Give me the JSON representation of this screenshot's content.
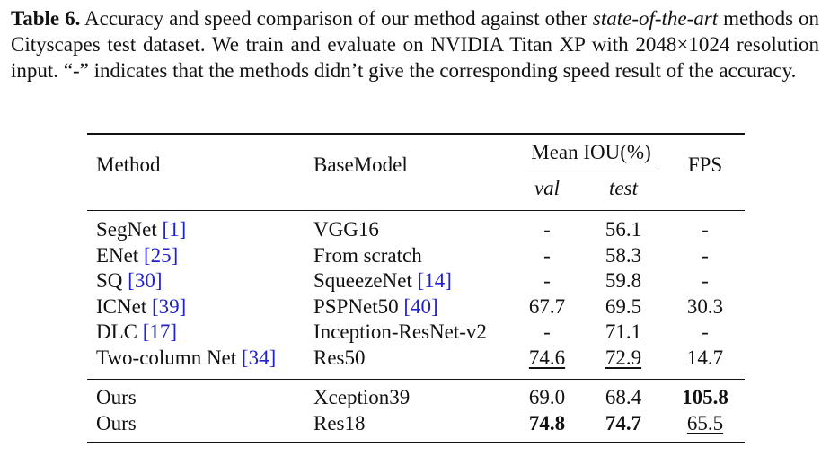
{
  "caption": {
    "label": "Table 6.",
    "text_pre": " Accuracy and speed comparison of our method against other ",
    "text_italic": "state-of-the-art",
    "text_post": " methods on Cityscapes test dataset. We train and evaluate on NVIDIA Titan XP with 2048×1024 resolution input. “-” indicates that the methods didn’t give the corresponding speed result of the accuracy."
  },
  "table": {
    "headers": {
      "method": "Method",
      "basemodel": "BaseModel",
      "miou": "Mean IOU(%)",
      "val": "val",
      "test": "test",
      "fps": "FPS"
    },
    "rows": [
      {
        "method": "SegNet",
        "method_ref": "[1]",
        "base": "VGG16",
        "base_ref": "",
        "val": "-",
        "test": "56.1",
        "fps": "-"
      },
      {
        "method": "ENet",
        "method_ref": "[25]",
        "base": "From scratch",
        "base_ref": "",
        "val": "-",
        "test": "58.3",
        "fps": "-"
      },
      {
        "method": "SQ",
        "method_ref": "[30]",
        "base": "SqueezeNet",
        "base_ref": "[14]",
        "val": "-",
        "test": "59.8",
        "fps": "-"
      },
      {
        "method": "ICNet",
        "method_ref": "[39]",
        "base": "PSPNet50",
        "base_ref": "[40]",
        "val": "67.7",
        "test": "69.5",
        "fps": "30.3"
      },
      {
        "method": "DLC",
        "method_ref": "[17]",
        "base": "Inception-ResNet-v2",
        "base_ref": "",
        "val": "-",
        "test": "71.1",
        "fps": "-"
      },
      {
        "method": "Two-column Net",
        "method_ref": "[34]",
        "base": "Res50",
        "base_ref": "",
        "val": "74.6",
        "test": "72.9",
        "fps": "14.7"
      }
    ],
    "ours": [
      {
        "method": "Ours",
        "base": "Xception39",
        "val": "69.0",
        "test": "68.4",
        "fps": "105.8"
      },
      {
        "method": "Ours",
        "base": "Res18",
        "val": "74.8",
        "test": "74.7",
        "fps": "65.5"
      }
    ]
  }
}
